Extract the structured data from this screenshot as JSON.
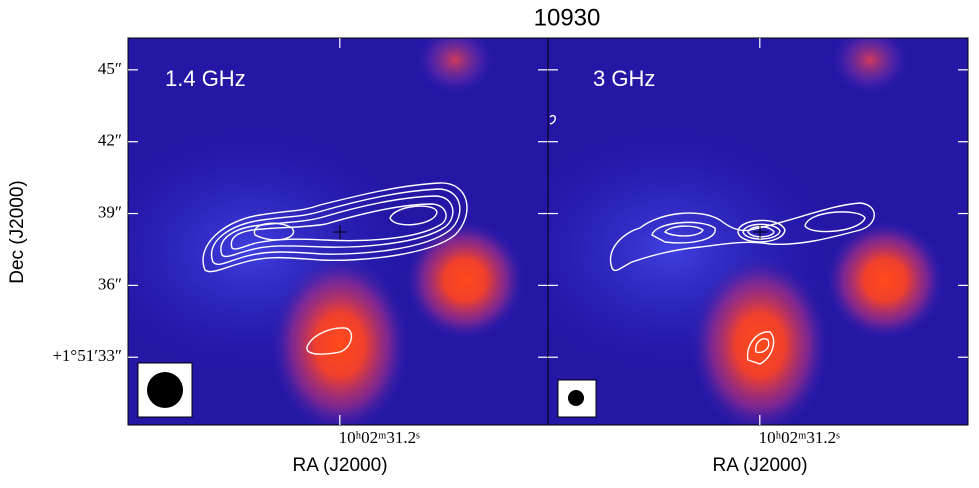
{
  "chart_data": [
    {
      "type": "image",
      "title": "10930",
      "label": "1.4 GHz",
      "xlabel": "RA (J2000)",
      "ylabel": "Dec (J2000)",
      "xlim": [
        31.79,
        30.62
      ],
      "xticks": [
        {
          "value": 31.2,
          "label": "10ʰ02ᵐ31.2ˢ"
        }
      ],
      "ylim": [
        30.17,
        46.33
      ],
      "yticks": [
        {
          "value": 45,
          "label": "45″"
        },
        {
          "value": 42,
          "label": "42″"
        },
        {
          "value": 39,
          "label": "39″"
        },
        {
          "value": 36,
          "label": "36″"
        },
        {
          "value": 33,
          "label": "+1°51′33″"
        }
      ]
    },
    {
      "type": "image",
      "label": "3 GHz",
      "xlabel": "RA (J2000)",
      "xlim": [
        31.79,
        30.62
      ],
      "xticks": [
        {
          "value": 31.2,
          "label": "10ʰ02ᵐ31.2ˢ"
        }
      ],
      "ylim": [
        30.17,
        46.33
      ]
    }
  ]
}
